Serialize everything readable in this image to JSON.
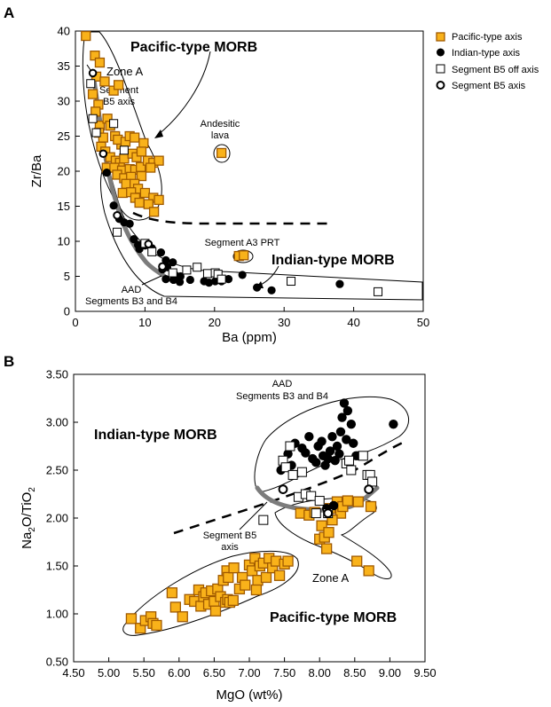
{
  "chart_data": [
    {
      "panel": "A",
      "type": "scatter",
      "xlabel": "Ba (ppm)",
      "ylabel": "Zr/Ba",
      "xlim": [
        0,
        50
      ],
      "ylim": [
        0,
        40
      ],
      "xticks": [
        0,
        10,
        20,
        30,
        40,
        50
      ],
      "yticks": [
        0,
        5,
        10,
        15,
        20,
        25,
        30,
        35,
        40
      ],
      "grid": false,
      "annotations": {
        "pacific": "Pacific-type MORB",
        "indian": "Indian-type MORB",
        "zone_a": "Zone A",
        "seg_b5_1": "Segment",
        "seg_b5_2": "B5 axis",
        "andesitic_1": "Andesitic",
        "andesitic_2": "lava",
        "a3prt": "Segment A3 PRT",
        "aad_1": "AAD",
        "aad_2": "Segments B3 and B4"
      },
      "series": [
        {
          "name": "Pacific-type axis",
          "marker": "orange-square",
          "points": [
            [
              1.5,
              39.3
            ],
            [
              2.8,
              36.5
            ],
            [
              3.5,
              35.5
            ],
            [
              3.0,
              33.5
            ],
            [
              2.5,
              31.0
            ],
            [
              3.3,
              29.5
            ],
            [
              4.2,
              32.8
            ],
            [
              5.5,
              31.5
            ],
            [
              6.2,
              32.3
            ],
            [
              2.9,
              28.5
            ],
            [
              3.5,
              26.5
            ],
            [
              3.4,
              25.5
            ],
            [
              4.0,
              24.8
            ],
            [
              3.7,
              23.5
            ],
            [
              4.6,
              27.5
            ],
            [
              5.0,
              26.5
            ],
            [
              5.7,
              25.0
            ],
            [
              6.6,
              23.8
            ],
            [
              6.1,
              24.5
            ],
            [
              7.2,
              24.2
            ],
            [
              7.8,
              25.0
            ],
            [
              8.5,
              24.8
            ],
            [
              9.8,
              24.0
            ],
            [
              4.3,
              22.8
            ],
            [
              5.0,
              22.0
            ],
            [
              5.8,
              21.5
            ],
            [
              6.4,
              21.2
            ],
            [
              7.0,
              21.8
            ],
            [
              8.2,
              22.5
            ],
            [
              8.8,
              22.0
            ],
            [
              9.5,
              22.8
            ],
            [
              4.5,
              20.5
            ],
            [
              5.6,
              20.5
            ],
            [
              6.7,
              20.1
            ],
            [
              7.8,
              20.3
            ],
            [
              8.6,
              20.2
            ],
            [
              9.4,
              20.6
            ],
            [
              10.4,
              21.5
            ],
            [
              11.2,
              21.2
            ],
            [
              12.0,
              21.5
            ],
            [
              6.0,
              19.5
            ],
            [
              7.0,
              19.0
            ],
            [
              8.0,
              19.2
            ],
            [
              9.5,
              19.3
            ],
            [
              10.8,
              20.5
            ],
            [
              7.3,
              18.2
            ],
            [
              8.5,
              18.2
            ],
            [
              9.0,
              17.5
            ],
            [
              6.8,
              16.9
            ],
            [
              8.0,
              17.0
            ],
            [
              8.6,
              16.2
            ],
            [
              10.0,
              16.9
            ],
            [
              11.2,
              16.2
            ],
            [
              12.0,
              15.9
            ],
            [
              9.2,
              15.5
            ],
            [
              10.5,
              15.3
            ],
            [
              11.3,
              14.2
            ],
            [
              21.0,
              22.6
            ],
            [
              23.5,
              7.9
            ],
            [
              24.2,
              8.0
            ]
          ]
        },
        {
          "name": "Indian-type axis",
          "marker": "black-circle",
          "points": [
            [
              4.5,
              19.8
            ],
            [
              5.5,
              15.1
            ],
            [
              6.3,
              13.2
            ],
            [
              7.0,
              12.7
            ],
            [
              7.8,
              12.5
            ],
            [
              8.4,
              10.3
            ],
            [
              9.0,
              9.5
            ],
            [
              9.2,
              8.9
            ],
            [
              10.0,
              9.4
            ],
            [
              11.0,
              9.0
            ],
            [
              12.3,
              8.4
            ],
            [
              13.0,
              7.3
            ],
            [
              14.0,
              7.0
            ],
            [
              13.2,
              6.3
            ],
            [
              12.5,
              6.0
            ],
            [
              14.3,
              5.2
            ],
            [
              15.1,
              5.0
            ],
            [
              13.0,
              4.6
            ],
            [
              14.1,
              4.5
            ],
            [
              15.0,
              4.2
            ],
            [
              16.5,
              4.5
            ],
            [
              18.5,
              4.3
            ],
            [
              19.2,
              4.1
            ],
            [
              20.1,
              4.3
            ],
            [
              21.0,
              4.3
            ],
            [
              22.0,
              4.6
            ],
            [
              24.0,
              5.2
            ],
            [
              26.1,
              3.4
            ],
            [
              28.2,
              3.0
            ],
            [
              38.0,
              3.9
            ]
          ]
        },
        {
          "name": "Segment B5 off axis",
          "marker": "open-square",
          "points": [
            [
              2.2,
              32.5
            ],
            [
              2.5,
              27.5
            ],
            [
              3.0,
              25.5
            ],
            [
              5.5,
              26.8
            ],
            [
              7.0,
              23.0
            ],
            [
              6.0,
              11.3
            ],
            [
              10.0,
              9.7
            ],
            [
              11.0,
              8.5
            ],
            [
              16.0,
              5.9
            ],
            [
              17.5,
              6.3
            ],
            [
              19.0,
              5.4
            ],
            [
              20.1,
              5.5
            ],
            [
              20.5,
              5.3
            ],
            [
              21.0,
              4.6
            ],
            [
              31.0,
              4.3
            ],
            [
              43.5,
              2.8
            ],
            [
              14.0,
              5.5
            ]
          ]
        },
        {
          "name": "Segment B5 axis",
          "marker": "open-circle",
          "points": [
            [
              2.5,
              34.0
            ],
            [
              4.0,
              22.5
            ],
            [
              6.0,
              13.7
            ],
            [
              10.5,
              9.6
            ],
            [
              12.5,
              6.4
            ]
          ]
        }
      ]
    },
    {
      "panel": "B",
      "type": "scatter",
      "xlabel": "MgO (wt%)",
      "ylabel_main": "Na",
      "ylabel_sub1": "2",
      "ylabel_mid": "O/TiO",
      "ylabel_sub2": "2",
      "xlim": [
        4.5,
        9.5
      ],
      "ylim": [
        0.5,
        3.5
      ],
      "xticks": [
        "4.50",
        "5.00",
        "5.50",
        "6.00",
        "6.50",
        "7.00",
        "7.50",
        "8.00",
        "8.50",
        "9.00",
        "9.50"
      ],
      "yticks": [
        "0.50",
        "1.00",
        "1.50",
        "2.00",
        "2.50",
        "3.00",
        "3.50"
      ],
      "grid": false,
      "annotations": {
        "aad_1": "AAD",
        "aad_2": "Segments B3 and B4",
        "indian": "Indian-type MORB",
        "pacific": "Pacific-type MORB",
        "zone_a": "Zone A",
        "seg_b5_1": "Segment B5",
        "seg_b5_2": "axis"
      },
      "series": [
        {
          "name": "Pacific-type axis",
          "marker": "orange-square",
          "points": [
            [
              5.32,
              0.95
            ],
            [
              5.45,
              0.85
            ],
            [
              5.52,
              0.93
            ],
            [
              5.6,
              0.97
            ],
            [
              5.63,
              0.9
            ],
            [
              5.68,
              0.88
            ],
            [
              5.9,
              1.22
            ],
            [
              5.95,
              1.07
            ],
            [
              6.05,
              0.97
            ],
            [
              6.15,
              1.15
            ],
            [
              6.22,
              1.13
            ],
            [
              6.28,
              1.25
            ],
            [
              6.31,
              1.08
            ],
            [
              6.35,
              1.18
            ],
            [
              6.38,
              1.22
            ],
            [
              6.42,
              1.1
            ],
            [
              6.46,
              1.24
            ],
            [
              6.5,
              1.13
            ],
            [
              6.52,
              1.03
            ],
            [
              6.55,
              1.26
            ],
            [
              6.59,
              1.18
            ],
            [
              6.63,
              1.35
            ],
            [
              6.66,
              1.12
            ],
            [
              6.69,
              1.15
            ],
            [
              6.72,
              1.12
            ],
            [
              6.77,
              1.14
            ],
            [
              6.68,
              1.45
            ],
            [
              6.7,
              1.38
            ],
            [
              6.78,
              1.48
            ],
            [
              6.86,
              1.26
            ],
            [
              6.9,
              1.38
            ],
            [
              6.94,
              1.3
            ],
            [
              7.0,
              1.51
            ],
            [
              7.04,
              1.45
            ],
            [
              7.08,
              1.58
            ],
            [
              7.12,
              1.35
            ],
            [
              7.15,
              1.5
            ],
            [
              7.2,
              1.53
            ],
            [
              7.24,
              1.38
            ],
            [
              7.28,
              1.58
            ],
            [
              7.33,
              1.48
            ],
            [
              7.38,
              1.55
            ],
            [
              7.43,
              1.4
            ],
            [
              7.5,
              1.52
            ],
            [
              7.55,
              1.55
            ],
            [
              7.1,
              1.25
            ],
            [
              7.73,
              2.05
            ],
            [
              7.85,
              2.03
            ],
            [
              7.93,
              2.06
            ],
            [
              8.0,
              1.78
            ],
            [
              8.03,
              1.92
            ],
            [
              8.07,
              1.8
            ],
            [
              8.1,
              1.68
            ],
            [
              8.13,
              1.85
            ],
            [
              8.15,
              2.1
            ],
            [
              8.25,
              2.17
            ],
            [
              8.3,
              2.05
            ],
            [
              8.18,
              1.98
            ],
            [
              8.33,
              2.12
            ],
            [
              8.4,
              2.18
            ],
            [
              8.55,
              2.17
            ],
            [
              8.53,
              1.55
            ],
            [
              8.7,
              1.45
            ],
            [
              8.73,
              2.12
            ]
          ]
        },
        {
          "name": "Indian-type axis",
          "marker": "black-circle",
          "points": [
            [
              7.65,
              2.78
            ],
            [
              7.75,
              2.73
            ],
            [
              7.8,
              2.68
            ],
            [
              7.85,
              2.85
            ],
            [
              7.9,
              2.62
            ],
            [
              7.95,
              2.58
            ],
            [
              7.98,
              2.75
            ],
            [
              8.03,
              2.8
            ],
            [
              8.05,
              2.65
            ],
            [
              8.08,
              2.55
            ],
            [
              8.12,
              2.62
            ],
            [
              8.15,
              2.7
            ],
            [
              8.18,
              2.85
            ],
            [
              8.22,
              2.6
            ],
            [
              8.25,
              2.75
            ],
            [
              8.28,
              2.67
            ],
            [
              8.3,
              2.9
            ],
            [
              8.32,
              3.05
            ],
            [
              8.35,
              3.2
            ],
            [
              8.38,
              2.82
            ],
            [
              8.4,
              3.12
            ],
            [
              8.45,
              2.98
            ],
            [
              8.48,
              2.78
            ],
            [
              8.52,
              2.65
            ],
            [
              8.55,
              2.65
            ],
            [
              9.05,
              2.98
            ],
            [
              7.55,
              2.67
            ],
            [
              7.6,
              2.55
            ],
            [
              7.45,
              2.5
            ],
            [
              8.1,
              2.1
            ],
            [
              8.2,
              2.13
            ]
          ]
        },
        {
          "name": "Segment B5 off axis",
          "marker": "open-square",
          "points": [
            [
              7.2,
              1.98
            ],
            [
              7.48,
              2.6
            ],
            [
              7.52,
              2.53
            ],
            [
              7.58,
              2.75
            ],
            [
              7.62,
              2.45
            ],
            [
              7.7,
              2.22
            ],
            [
              7.75,
              2.48
            ],
            [
              7.8,
              2.25
            ],
            [
              7.88,
              2.23
            ],
            [
              7.95,
              2.05
            ],
            [
              8.0,
              2.18
            ],
            [
              8.12,
              2.05
            ],
            [
              8.38,
              2.57
            ],
            [
              8.42,
              2.6
            ],
            [
              8.45,
              2.5
            ],
            [
              8.62,
              2.65
            ],
            [
              8.68,
              2.45
            ],
            [
              8.72,
              2.45
            ],
            [
              8.75,
              2.38
            ]
          ]
        },
        {
          "name": "Segment B5 axis",
          "marker": "open-circle",
          "points": [
            [
              7.48,
              2.3
            ],
            [
              8.12,
              2.05
            ],
            [
              8.7,
              2.3
            ]
          ]
        }
      ]
    }
  ],
  "legend": {
    "placement": "top-right",
    "items": [
      {
        "label": "Pacific-type axis",
        "marker": "orange-square"
      },
      {
        "label": "Indian-type axis",
        "marker": "black-circle"
      },
      {
        "label": "Segment B5 off axis",
        "marker": "open-square"
      },
      {
        "label": "Segment B5 axis",
        "marker": "open-circle"
      }
    ]
  },
  "colors": {
    "orange_fill": "#f9b21a",
    "orange_stroke": "#a05a00",
    "trend_gray": "#7c7c7c",
    "ink": "#000000"
  }
}
